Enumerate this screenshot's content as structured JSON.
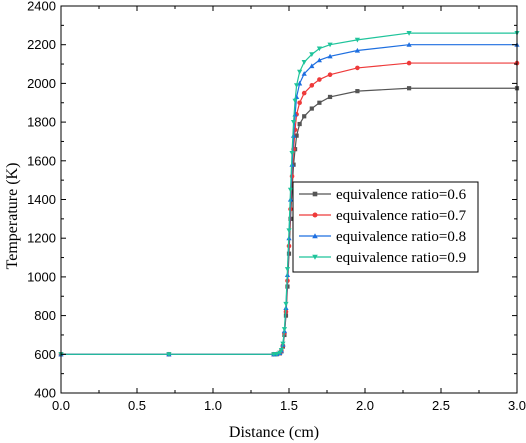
{
  "chart_data": {
    "type": "line",
    "xlabel": "Distance (cm)",
    "ylabel": "Temperature (K)",
    "xlim": [
      0.0,
      3.0
    ],
    "ylim": [
      400,
      2400
    ],
    "xticks": [
      0.0,
      0.5,
      1.0,
      1.5,
      2.0,
      2.5,
      3.0
    ],
    "yticks": [
      400,
      600,
      800,
      1000,
      1200,
      1400,
      1600,
      1800,
      2000,
      2200,
      2400
    ],
    "legend_position": "center-right",
    "grid": false,
    "series": [
      {
        "name": "equivalence ratio=0.6",
        "color": "#555555",
        "marker": "square",
        "x": [
          0.0,
          0.71,
          1.4,
          1.42,
          1.44,
          1.45,
          1.46,
          1.47,
          1.48,
          1.49,
          1.5,
          1.51,
          1.52,
          1.53,
          1.54,
          1.55,
          1.57,
          1.6,
          1.65,
          1.7,
          1.77,
          1.95,
          2.29,
          3.0
        ],
        "y": [
          600,
          600,
          600,
          601,
          605,
          615,
          640,
          700,
          800,
          950,
          1120,
          1300,
          1450,
          1580,
          1660,
          1730,
          1790,
          1830,
          1870,
          1900,
          1930,
          1960,
          1975,
          1975
        ]
      },
      {
        "name": "equivalence ratio=0.7",
        "color": "#ee3a3a",
        "marker": "circle",
        "x": [
          0.0,
          0.71,
          1.4,
          1.42,
          1.44,
          1.45,
          1.46,
          1.47,
          1.48,
          1.49,
          1.5,
          1.51,
          1.52,
          1.53,
          1.54,
          1.55,
          1.57,
          1.6,
          1.65,
          1.7,
          1.77,
          1.95,
          2.29,
          3.0
        ],
        "y": [
          600,
          600,
          600,
          601,
          606,
          618,
          645,
          710,
          820,
          980,
          1160,
          1350,
          1520,
          1660,
          1760,
          1840,
          1900,
          1950,
          1990,
          2020,
          2045,
          2080,
          2105,
          2105
        ]
      },
      {
        "name": "equivalence ratio=0.8",
        "color": "#1e6fe0",
        "marker": "triangle-up",
        "x": [
          0.0,
          0.71,
          1.4,
          1.42,
          1.44,
          1.45,
          1.46,
          1.47,
          1.48,
          1.49,
          1.5,
          1.51,
          1.52,
          1.53,
          1.54,
          1.55,
          1.57,
          1.6,
          1.65,
          1.7,
          1.77,
          1.95,
          2.29,
          3.0
        ],
        "y": [
          600,
          600,
          600,
          601,
          607,
          620,
          650,
          720,
          840,
          1010,
          1200,
          1400,
          1580,
          1730,
          1840,
          1930,
          2000,
          2050,
          2090,
          2120,
          2140,
          2170,
          2200,
          2200
        ]
      },
      {
        "name": "equivalence ratio=0.9",
        "color": "#1fc49b",
        "marker": "triangle-down",
        "x": [
          0.0,
          0.71,
          1.4,
          1.42,
          1.44,
          1.45,
          1.46,
          1.47,
          1.48,
          1.49,
          1.5,
          1.51,
          1.52,
          1.53,
          1.54,
          1.55,
          1.57,
          1.6,
          1.65,
          1.7,
          1.77,
          1.95,
          2.29,
          3.0
        ],
        "y": [
          600,
          600,
          600,
          601,
          608,
          622,
          655,
          730,
          860,
          1040,
          1240,
          1450,
          1640,
          1800,
          1910,
          1990,
          2060,
          2110,
          2150,
          2180,
          2200,
          2225,
          2260,
          2260
        ]
      }
    ]
  }
}
